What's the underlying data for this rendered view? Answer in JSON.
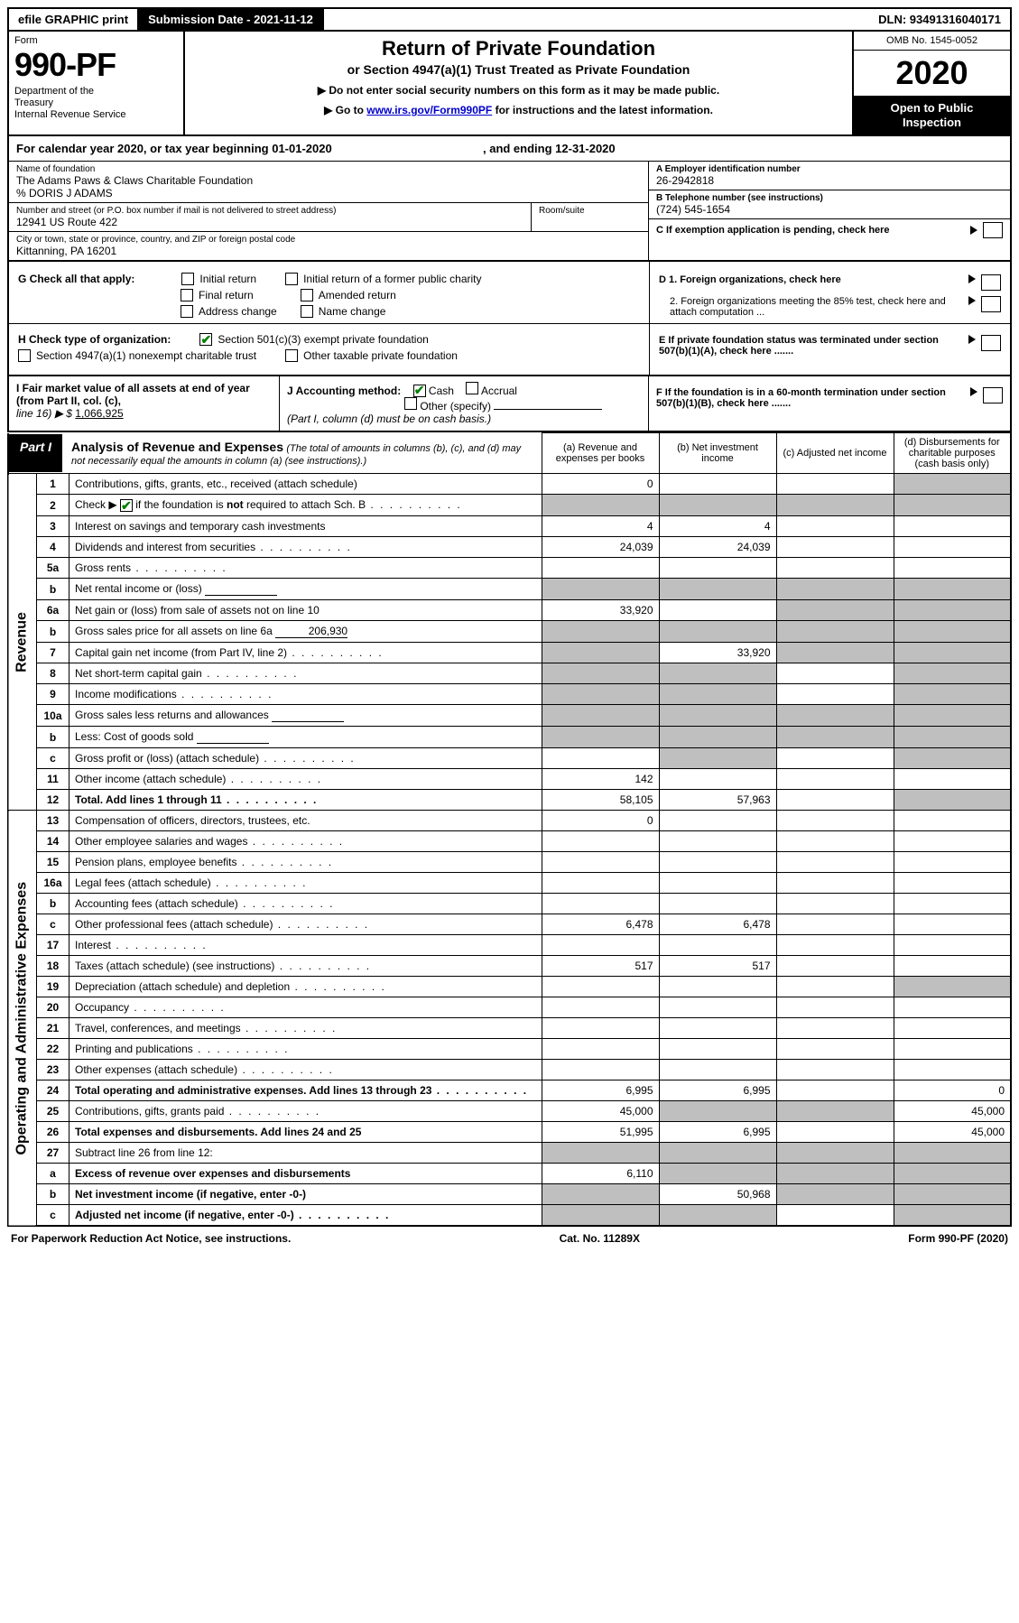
{
  "colors": {
    "black": "#000000",
    "white": "#ffffff",
    "shaded": "#bfbfbf",
    "check_green": "#008000",
    "link_blue": "#0000cc"
  },
  "top_bar": {
    "efile": "efile GRAPHIC print",
    "sub_date_label": "Submission Date - 2021-11-12",
    "dln": "DLN: 93491316040171"
  },
  "header": {
    "form_label": "Form",
    "form_number": "990-PF",
    "dept": "Department of the Treasury\nInternal Revenue Service",
    "title": "Return of Private Foundation",
    "subtitle": "or Section 4947(a)(1) Trust Treated as Private Foundation",
    "note1": "▶ Do not enter social security numbers on this form as it may be made public.",
    "note2_pre": "▶ Go to ",
    "note2_link": "www.irs.gov/Form990PF",
    "note2_post": " for instructions and the latest information.",
    "omb": "OMB No. 1545-0052",
    "year": "2020",
    "open_public": "Open to Public Inspection"
  },
  "cal_year": "For calendar year 2020, or tax year beginning 01-01-2020",
  "cal_year_end": ", and ending 12-31-2020",
  "foundation": {
    "name_label": "Name of foundation",
    "name": "The Adams Paws & Claws Charitable Foundation",
    "care_of": "% DORIS J ADAMS",
    "street_label": "Number and street (or P.O. box number if mail is not delivered to street address)",
    "street": "12941 US Route 422",
    "room_label": "Room/suite",
    "city_label": "City or town, state or province, country, and ZIP or foreign postal code",
    "city": "Kittanning, PA  16201",
    "ein_label": "A Employer identification number",
    "ein": "26-2942818",
    "phone_label": "B Telephone number (see instructions)",
    "phone": "(724) 545-1654",
    "c_label": "C If exemption application is pending, check here"
  },
  "section_g": {
    "label": "G Check all that apply:",
    "items": [
      "Initial return",
      "Initial return of a former public charity",
      "Final return",
      "Amended return",
      "Address change",
      "Name change"
    ]
  },
  "section_h": {
    "label": "H Check type of organization:",
    "opt1": "Section 501(c)(3) exempt private foundation",
    "opt2": "Section 4947(a)(1) nonexempt charitable trust",
    "opt3": "Other taxable private foundation"
  },
  "section_d": {
    "d1": "D 1. Foreign organizations, check here",
    "d2": "2. Foreign organizations meeting the 85% test, check here and attach computation ..."
  },
  "section_e": "E  If private foundation status was terminated under section 507(b)(1)(A), check here .......",
  "section_f": "F  If the foundation is in a 60-month termination under section 507(b)(1)(B), check here .......",
  "section_i": {
    "label": "I Fair market value of all assets at end of year (from Part II, col. (c),",
    "line": "line 16) ▶ $",
    "value": "1,066,925"
  },
  "section_j": {
    "label": "J Accounting method:",
    "cash": "Cash",
    "accrual": "Accrual",
    "other": "Other (specify)",
    "note": "(Part I, column (d) must be on cash basis.)"
  },
  "part1": {
    "label": "Part I",
    "title": "Analysis of Revenue and Expenses",
    "subtitle": "(The total of amounts in columns (b), (c), and (d) may not necessarily equal the amounts in column (a) (see instructions).)",
    "col_a": "(a)  Revenue and expenses per books",
    "col_b": "(b)  Net investment income",
    "col_c": "(c)  Adjusted net income",
    "col_d": "(d)  Disbursements for charitable purposes (cash basis only)"
  },
  "side_labels": {
    "revenue": "Revenue",
    "expenses": "Operating and Administrative Expenses"
  },
  "rows": [
    {
      "n": "1",
      "desc": "Contributions, gifts, grants, etc., received (attach schedule)",
      "a": "0",
      "shade": [
        "d"
      ]
    },
    {
      "n": "2",
      "desc": "Check ▶ ☑ if the foundation is not required to attach Sch. B",
      "dots": true,
      "shade": [
        "a",
        "b",
        "c",
        "d"
      ]
    },
    {
      "n": "3",
      "desc": "Interest on savings and temporary cash investments",
      "a": "4",
      "b": "4"
    },
    {
      "n": "4",
      "desc": "Dividends and interest from securities",
      "dots": true,
      "a": "24,039",
      "b": "24,039"
    },
    {
      "n": "5a",
      "desc": "Gross rents",
      "dots": true
    },
    {
      "n": "b",
      "desc": "Net rental income or (loss)",
      "sub": true,
      "shade": [
        "a",
        "b",
        "c",
        "d"
      ]
    },
    {
      "n": "6a",
      "desc": "Net gain or (loss) from sale of assets not on line 10",
      "a": "33,920",
      "shade": [
        "c",
        "d"
      ]
    },
    {
      "n": "b",
      "desc": "Gross sales price for all assets on line 6a",
      "sub": true,
      "subval": "206,930",
      "shade": [
        "a",
        "b",
        "c",
        "d"
      ]
    },
    {
      "n": "7",
      "desc": "Capital gain net income (from Part IV, line 2)",
      "dots": true,
      "b": "33,920",
      "shade": [
        "a",
        "c",
        "d"
      ]
    },
    {
      "n": "8",
      "desc": "Net short-term capital gain",
      "dots": true,
      "shade": [
        "a",
        "b",
        "d"
      ]
    },
    {
      "n": "9",
      "desc": "Income modifications",
      "dots": true,
      "shade": [
        "a",
        "b",
        "d"
      ]
    },
    {
      "n": "10a",
      "desc": "Gross sales less returns and allowances",
      "sub": true,
      "shade": [
        "a",
        "b",
        "c",
        "d"
      ]
    },
    {
      "n": "b",
      "desc": "Less: Cost of goods sold",
      "sub": true,
      "dots": true,
      "shade": [
        "a",
        "b",
        "c",
        "d"
      ]
    },
    {
      "n": "c",
      "desc": "Gross profit or (loss) (attach schedule)",
      "dots": true,
      "shade": [
        "b",
        "d"
      ]
    },
    {
      "n": "11",
      "desc": "Other income (attach schedule)",
      "dots": true,
      "a": "142"
    },
    {
      "n": "12",
      "desc": "Total. Add lines 1 through 11",
      "dots": true,
      "bold": true,
      "a": "58,105",
      "b": "57,963",
      "shade": [
        "d"
      ]
    },
    {
      "n": "13",
      "desc": "Compensation of officers, directors, trustees, etc.",
      "a": "0"
    },
    {
      "n": "14",
      "desc": "Other employee salaries and wages",
      "dots": true
    },
    {
      "n": "15",
      "desc": "Pension plans, employee benefits",
      "dots": true
    },
    {
      "n": "16a",
      "desc": "Legal fees (attach schedule)",
      "dots": true
    },
    {
      "n": "b",
      "desc": "Accounting fees (attach schedule)",
      "dots": true
    },
    {
      "n": "c",
      "desc": "Other professional fees (attach schedule)",
      "dots": true,
      "a": "6,478",
      "b": "6,478"
    },
    {
      "n": "17",
      "desc": "Interest",
      "dots": true
    },
    {
      "n": "18",
      "desc": "Taxes (attach schedule) (see instructions)",
      "dots": true,
      "a": "517",
      "b": "517"
    },
    {
      "n": "19",
      "desc": "Depreciation (attach schedule) and depletion",
      "dots": true,
      "shade": [
        "d"
      ]
    },
    {
      "n": "20",
      "desc": "Occupancy",
      "dots": true
    },
    {
      "n": "21",
      "desc": "Travel, conferences, and meetings",
      "dots": true
    },
    {
      "n": "22",
      "desc": "Printing and publications",
      "dots": true
    },
    {
      "n": "23",
      "desc": "Other expenses (attach schedule)",
      "dots": true
    },
    {
      "n": "24",
      "desc": "Total operating and administrative expenses. Add lines 13 through 23",
      "dots": true,
      "bold": true,
      "a": "6,995",
      "b": "6,995",
      "d": "0"
    },
    {
      "n": "25",
      "desc": "Contributions, gifts, grants paid",
      "dots": true,
      "a": "45,000",
      "d": "45,000",
      "shade": [
        "b",
        "c"
      ]
    },
    {
      "n": "26",
      "desc": "Total expenses and disbursements. Add lines 24 and 25",
      "bold": true,
      "a": "51,995",
      "b": "6,995",
      "d": "45,000"
    },
    {
      "n": "27",
      "desc": "Subtract line 26 from line 12:",
      "shade": [
        "a",
        "b",
        "c",
        "d"
      ]
    },
    {
      "n": "a",
      "desc": "Excess of revenue over expenses and disbursements",
      "bold": true,
      "a": "6,110",
      "shade": [
        "b",
        "c",
        "d"
      ]
    },
    {
      "n": "b",
      "desc": "Net investment income (if negative, enter -0-)",
      "bold": true,
      "b": "50,968",
      "shade": [
        "a",
        "c",
        "d"
      ]
    },
    {
      "n": "c",
      "desc": "Adjusted net income (if negative, enter -0-)",
      "bold": true,
      "dots": true,
      "shade": [
        "a",
        "b",
        "d"
      ]
    }
  ],
  "footer": {
    "left": "For Paperwork Reduction Act Notice, see instructions.",
    "center": "Cat. No. 11289X",
    "right": "Form 990-PF (2020)"
  }
}
